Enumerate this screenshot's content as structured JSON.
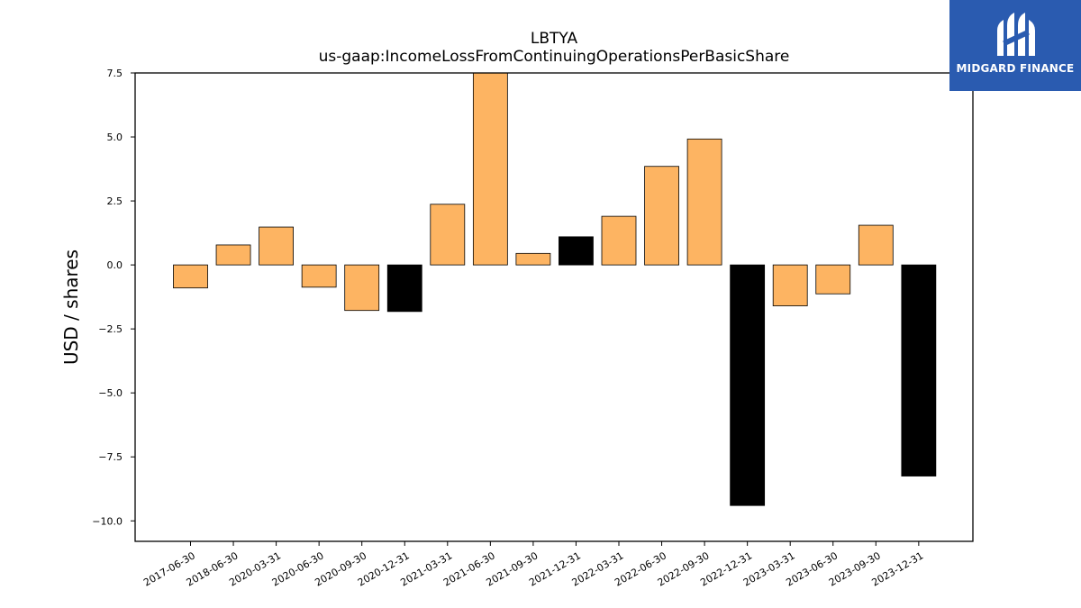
{
  "chart_data": {
    "type": "bar",
    "title": "LBTYA",
    "subtitle": "us-gaap:IncomeLossFromContinuingOperationsPerBasicShare",
    "ylabel": "USD / shares",
    "xlabel": "",
    "ylim": [
      -10.8,
      7.5
    ],
    "yticks": [
      7.5,
      5.0,
      2.5,
      0.0,
      -2.5,
      -5.0,
      -7.5,
      -10.0
    ],
    "ytick_labels": [
      "7.5",
      "5.0",
      "2.5",
      "0.0",
      "−2.5",
      "−5.0",
      "−7.5",
      "−10.0"
    ],
    "categories": [
      "2017-06-30",
      "2018-06-30",
      "2020-03-31",
      "2020-06-30",
      "2020-09-30",
      "2020-12-31",
      "2021-03-31",
      "2021-06-30",
      "2021-09-30",
      "2021-12-31",
      "2022-03-31",
      "2022-06-30",
      "2022-09-30",
      "2022-12-31",
      "2023-03-31",
      "2023-06-30",
      "2023-09-30",
      "2023-12-31"
    ],
    "values": [
      -0.9,
      0.78,
      1.48,
      -0.87,
      -1.78,
      -1.82,
      2.37,
      7.58,
      0.45,
      1.1,
      1.9,
      3.85,
      4.92,
      -9.4,
      -1.6,
      -1.13,
      1.55,
      -8.25
    ],
    "fiscal_year_end": [
      false,
      false,
      false,
      false,
      false,
      true,
      false,
      false,
      false,
      true,
      false,
      false,
      false,
      true,
      false,
      false,
      false,
      true
    ],
    "grid": false,
    "legend": "none",
    "colors": {
      "quarter_bar": "#fdb462",
      "year_end_bar": "#000000",
      "bar_edge": "#000000"
    }
  },
  "logo": {
    "text": "MIDGARD FINANCE",
    "background": "#2a5bb0"
  }
}
